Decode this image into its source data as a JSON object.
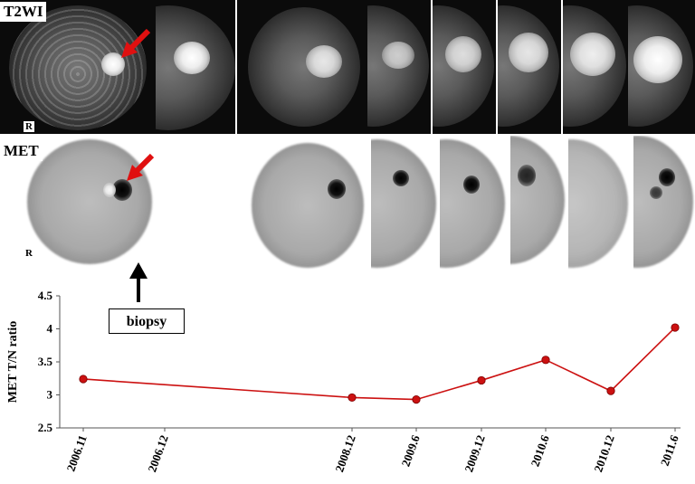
{
  "labels": {
    "t2wi": "T2WI",
    "met": "MET",
    "r_t2": "R",
    "r_met": "R",
    "biopsy": "biopsy"
  },
  "chart_data": {
    "type": "line",
    "ylabel": "MET T/N ratio",
    "xlabel": "",
    "ylim": [
      2.5,
      4.5
    ],
    "yticks": [
      "2.5",
      "3",
      "3.5",
      "4",
      "4.5"
    ],
    "x_labels": [
      "2006.11",
      "2006.12",
      "2008.12",
      "2009.6",
      "2009.12",
      "2010.6",
      "2010.12",
      "2011.6"
    ],
    "series": [
      {
        "color": "#cc1111",
        "points": [
          {
            "x": "2006.11",
            "y": 3.24
          },
          {
            "x": "2008.12",
            "y": 2.96
          },
          {
            "x": "2009.6",
            "y": 2.93
          },
          {
            "x": "2009.12",
            "y": 3.22
          },
          {
            "x": "2010.6",
            "y": 3.53
          },
          {
            "x": "2010.12",
            "y": 3.06
          },
          {
            "x": "2011.6",
            "y": 4.02
          }
        ]
      }
    ],
    "grid": false
  },
  "colors": {
    "arrow": "#e01010",
    "series": "#cc1111"
  }
}
